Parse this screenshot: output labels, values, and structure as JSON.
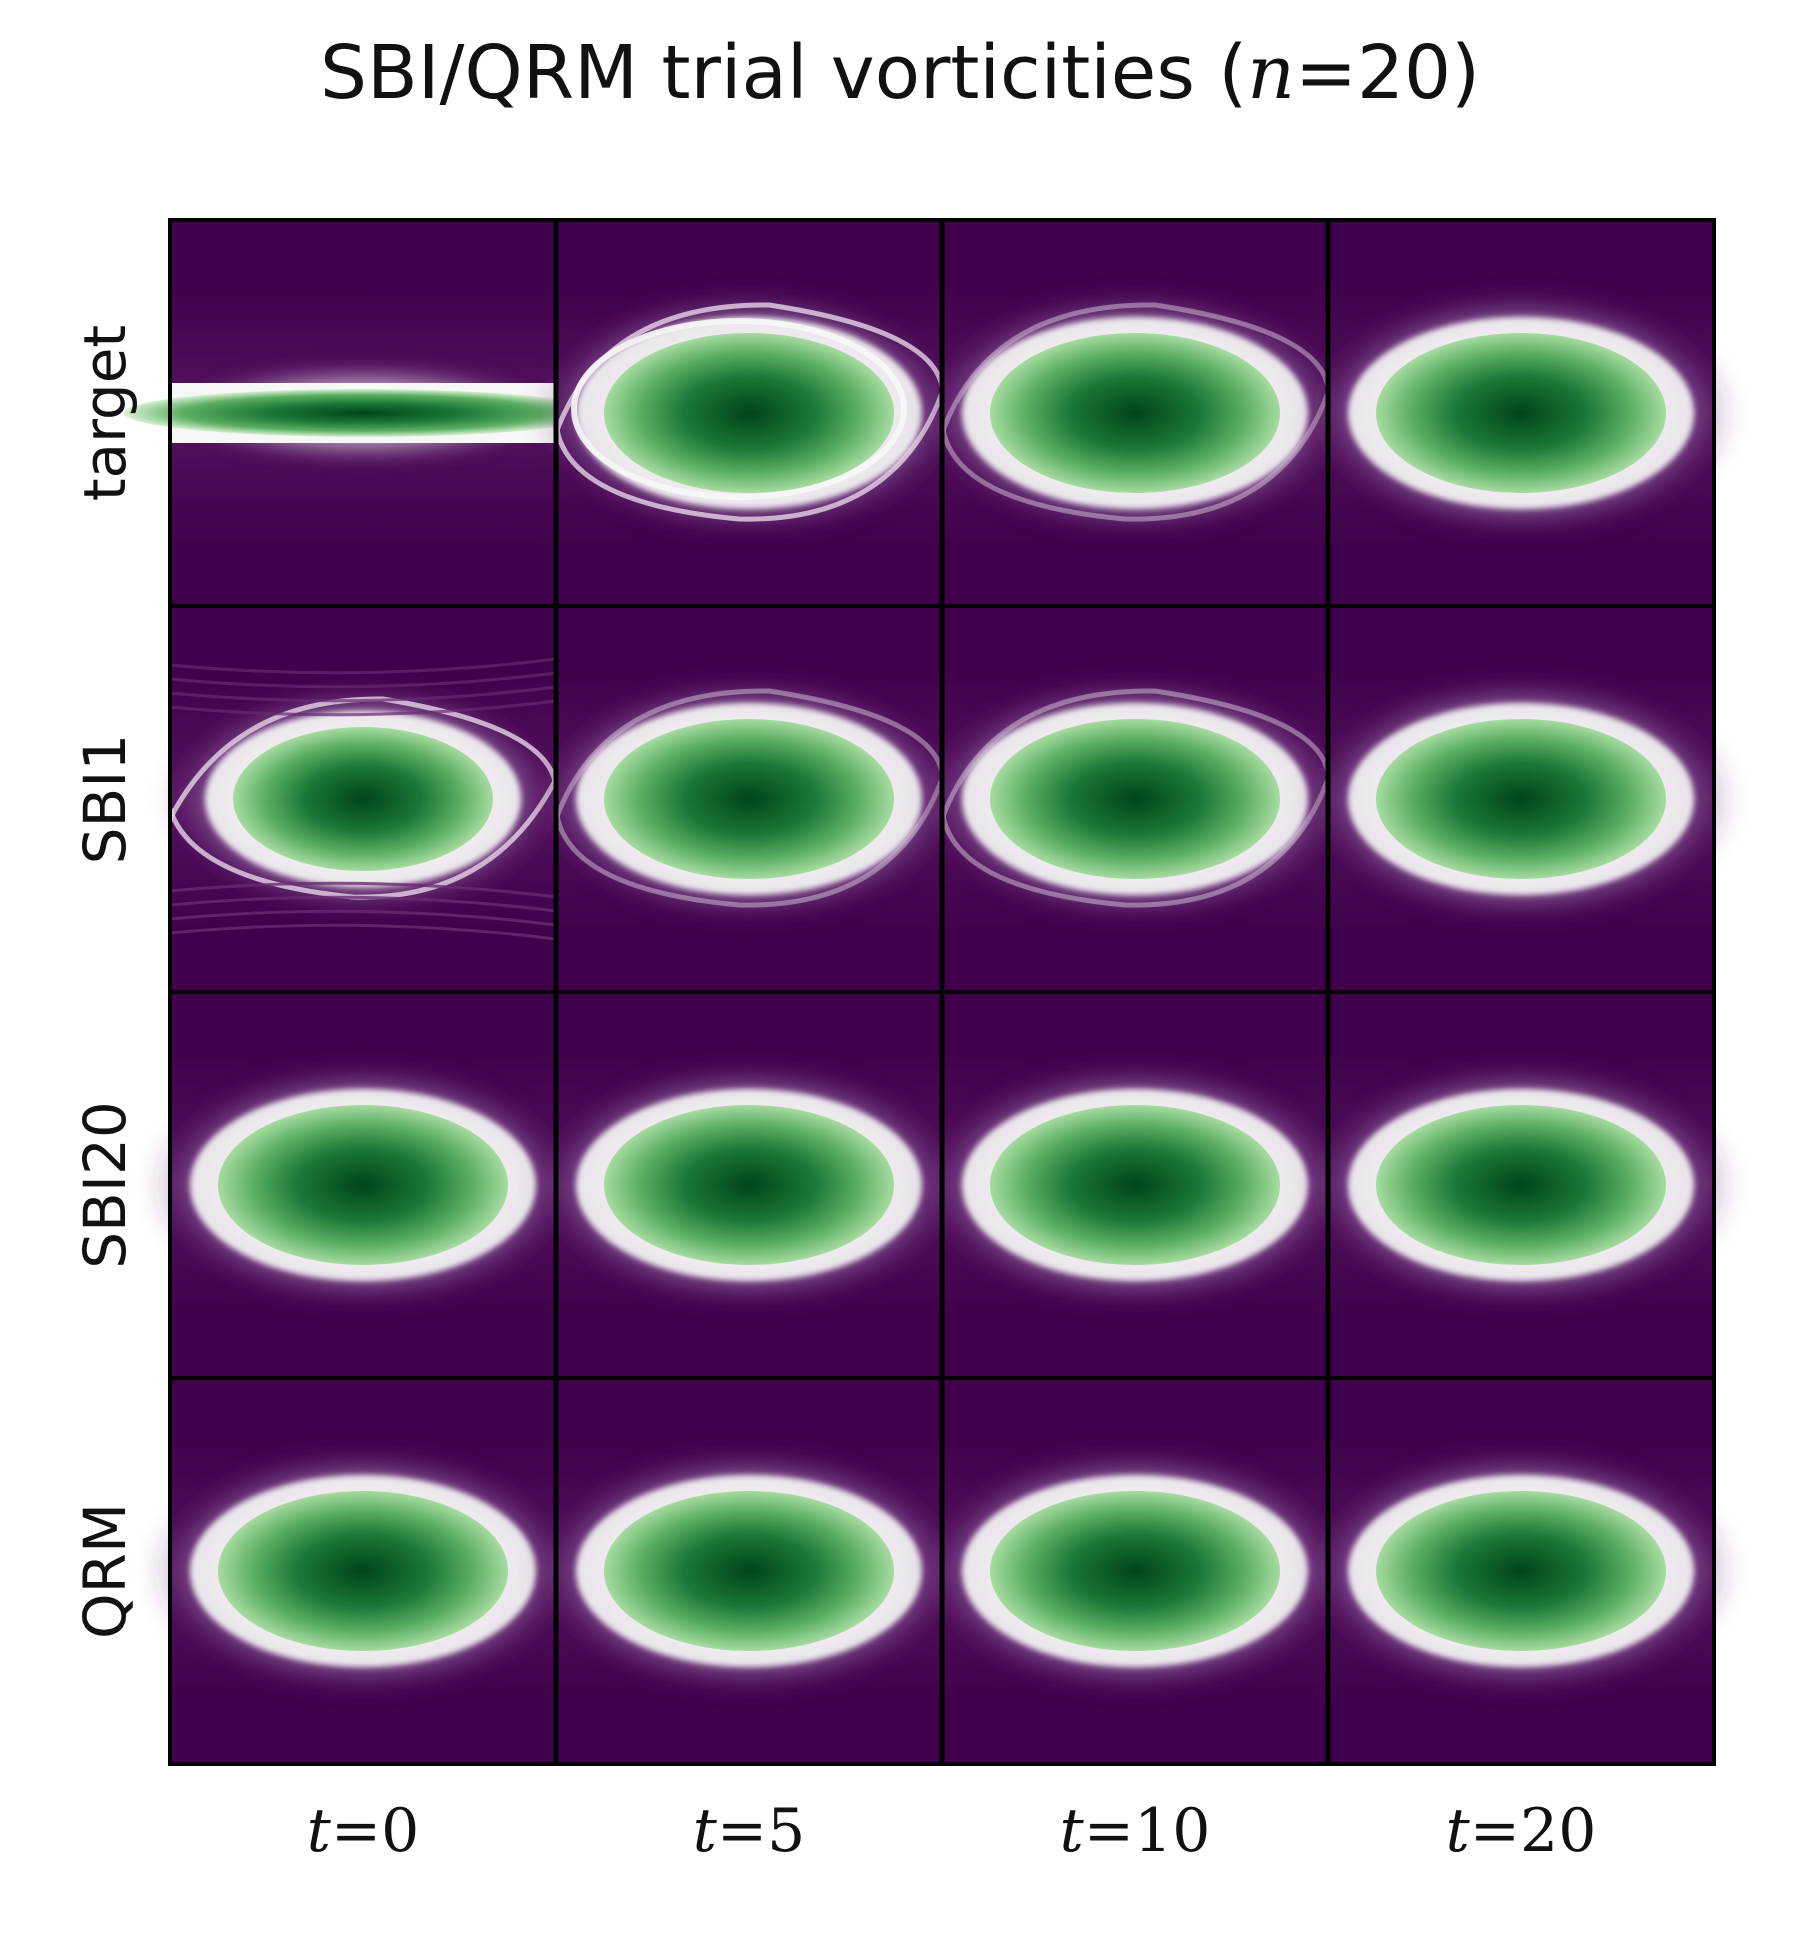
{
  "figure": {
    "title_prefix": "SBI/QRM trial vorticities (",
    "title_var": "n",
    "title_eq": "=",
    "title_num": "20",
    "title_suffix": ")",
    "rows": [
      {
        "label": "target"
      },
      {
        "label": "SBI1"
      },
      {
        "label": "SBI20"
      },
      {
        "label": "QRM"
      }
    ],
    "columns": [
      {
        "var": "t",
        "eq": "=",
        "value": "0"
      },
      {
        "var": "t",
        "eq": "=",
        "value": "5"
      },
      {
        "var": "t",
        "eq": "=",
        "value": "10"
      },
      {
        "var": "t",
        "eq": "=",
        "value": "20"
      }
    ],
    "colormap": {
      "background": "#40004b",
      "mid_purple": "#9970ab",
      "light_purple": "#e7d4e8",
      "white": "#f7f7f7",
      "light_green": "#d9f0d3",
      "mid_green": "#5aae61",
      "dark_green": "#00441b"
    },
    "panel_style": {
      "target": [
        "thin-stripe",
        "rolling",
        "settling",
        "smooth"
      ],
      "SBI1": [
        "turbulent",
        "settling",
        "settling",
        "smooth"
      ],
      "SBI20": [
        "smooth",
        "smooth",
        "smooth",
        "smooth"
      ],
      "QRM": [
        "smooth",
        "smooth",
        "smooth",
        "smooth"
      ]
    }
  }
}
